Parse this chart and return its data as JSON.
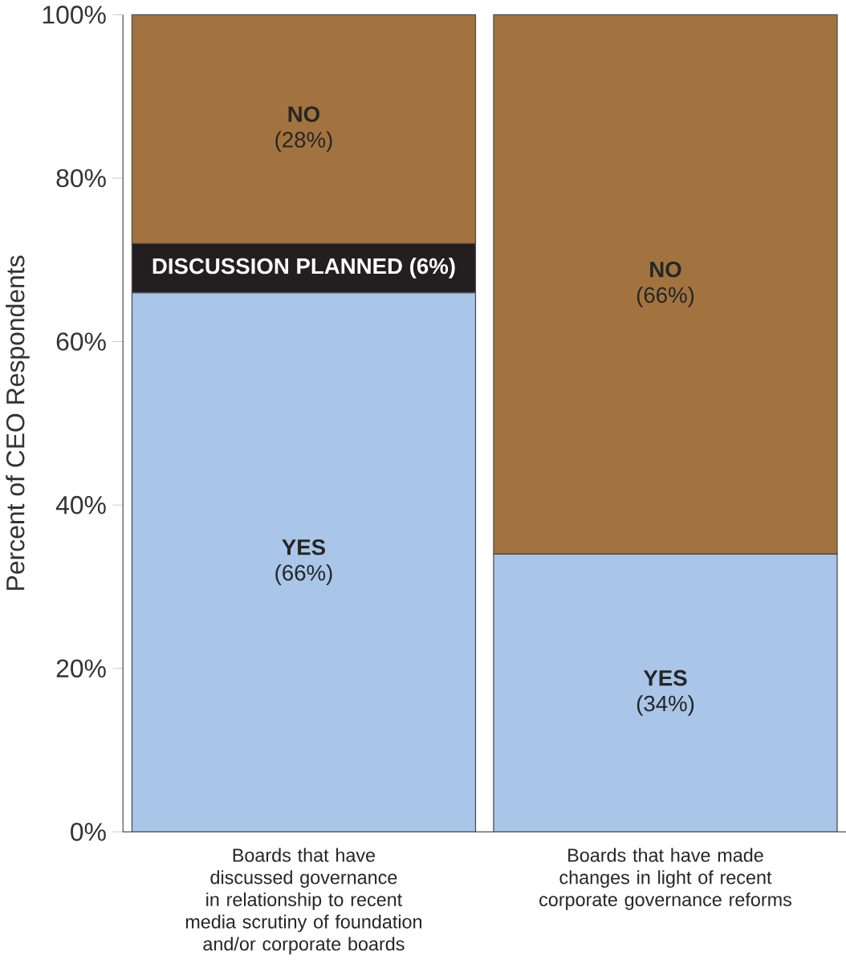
{
  "chart_data": {
    "type": "bar",
    "stacked": true,
    "categories": [
      "Boards that have discussed governance in relationship to recent media scrutiny of foundation and/or corporate boards",
      "Boards that have made changes in light of recent corporate governance reforms"
    ],
    "series": [
      {
        "name": "YES",
        "color": "#a9c6e8",
        "values": [
          66,
          34
        ],
        "value_labels": [
          "(66%)",
          "(34%)"
        ]
      },
      {
        "name": "DISCUSSION PLANNED",
        "color": "#231f20",
        "values": [
          6,
          null
        ],
        "value_labels": [
          "(6%)",
          null
        ]
      },
      {
        "name": "NO",
        "color": "#a3733f",
        "values": [
          28,
          66
        ],
        "value_labels": [
          "(28%)",
          "(66%)"
        ]
      }
    ],
    "ylim": [
      0,
      100
    ],
    "yticks": [
      {
        "value": 0,
        "label": "0%"
      },
      {
        "value": 20,
        "label": "20%"
      },
      {
        "value": 40,
        "label": "40%"
      },
      {
        "value": 60,
        "label": "60%"
      },
      {
        "value": 80,
        "label": "80%"
      },
      {
        "value": 100,
        "label": "100%"
      }
    ],
    "ylabel": "Percent of CEO Respondents"
  }
}
